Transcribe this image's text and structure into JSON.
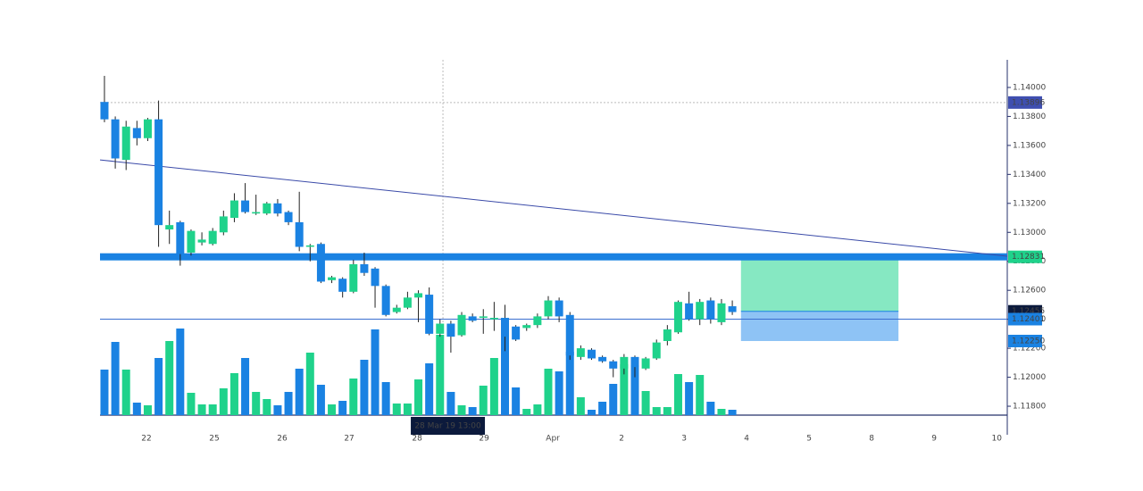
{
  "chart_data": {
    "type": "candlestick",
    "x": [
      0,
      1,
      2,
      3,
      4,
      5,
      6,
      7,
      8,
      9,
      10,
      11,
      12,
      13,
      14,
      15,
      16,
      17,
      18,
      19,
      20,
      21,
      22,
      23,
      24,
      25,
      26,
      27,
      28,
      29,
      30,
      31,
      32,
      33,
      34,
      35,
      36,
      37,
      38,
      39,
      40,
      41,
      42,
      43,
      44,
      45,
      46,
      47,
      48,
      49,
      50,
      51,
      52,
      53,
      54,
      55,
      56,
      57,
      58
    ],
    "open": [
      1.139,
      1.1378,
      1.135,
      1.1372,
      1.1365,
      1.1378,
      1.1302,
      1.1307,
      1.1286,
      1.1293,
      1.1292,
      1.13,
      1.131,
      1.1322,
      1.1313,
      1.1313,
      1.132,
      1.1314,
      1.1307,
      1.129,
      1.1292,
      1.1267,
      1.1268,
      1.1259,
      1.1278,
      1.1275,
      1.1263,
      1.1245,
      1.1248,
      1.1255,
      1.1257,
      1.123,
      1.1237,
      1.1229,
      1.1242,
      1.1241,
      1.124,
      1.1241,
      1.1235,
      1.1234,
      1.1236,
      1.1242,
      1.1253,
      1.1243,
      1.1214,
      1.1219,
      1.1214,
      1.1211,
      1.1206,
      1.1214,
      1.1206,
      1.1213,
      1.1225,
      1.1231,
      1.1251,
      1.124,
      1.1253,
      1.1238,
      1.1249
    ],
    "high": [
      1.1408,
      1.138,
      1.1377,
      1.1377,
      1.1379,
      1.1391,
      1.1315,
      1.1308,
      1.1302,
      1.13,
      1.1303,
      1.1315,
      1.1327,
      1.1334,
      1.1326,
      1.1321,
      1.1323,
      1.1315,
      1.1328,
      1.1292,
      1.1293,
      1.127,
      1.1269,
      1.1281,
      1.1286,
      1.1276,
      1.1264,
      1.125,
      1.1259,
      1.126,
      1.1262,
      1.124,
      1.1239,
      1.1245,
      1.1244,
      1.1247,
      1.1252,
      1.125,
      1.1236,
      1.1237,
      1.1244,
      1.1256,
      1.1255,
      1.1245,
      1.1222,
      1.122,
      1.1215,
      1.1212,
      1.1216,
      1.1215,
      1.1214,
      1.1226,
      1.1236,
      1.1253,
      1.1259,
      1.1254,
      1.1255,
      1.1254,
      1.1253
    ],
    "low": [
      1.1376,
      1.1344,
      1.1343,
      1.136,
      1.1363,
      1.129,
      1.1292,
      1.1277,
      1.1284,
      1.1291,
      1.1291,
      1.1298,
      1.1307,
      1.1313,
      1.1312,
      1.1312,
      1.1311,
      1.1305,
      1.1287,
      1.128,
      1.1265,
      1.1265,
      1.1255,
      1.1258,
      1.127,
      1.1248,
      1.1242,
      1.1244,
      1.1247,
      1.1238,
      1.1229,
      1.1228,
      1.1217,
      1.1228,
      1.1238,
      1.123,
      1.1232,
      1.1218,
      1.1225,
      1.1232,
      1.1234,
      1.124,
      1.1238,
      1.1212,
      1.1212,
      1.1212,
      1.121,
      1.12,
      1.1202,
      1.12,
      1.1205,
      1.1212,
      1.1222,
      1.123,
      1.1239,
      1.1236,
      1.1237,
      1.1236,
      1.1243
    ],
    "close": [
      1.1378,
      1.1351,
      1.1373,
      1.1365,
      1.1378,
      1.1305,
      1.1305,
      1.1285,
      1.1301,
      1.1295,
      1.1301,
      1.1311,
      1.1322,
      1.1314,
      1.1314,
      1.132,
      1.1313,
      1.1307,
      1.129,
      1.1291,
      1.1266,
      1.1269,
      1.1259,
      1.1278,
      1.1272,
      1.1263,
      1.1243,
      1.1248,
      1.1255,
      1.1258,
      1.123,
      1.1237,
      1.1228,
      1.1243,
      1.1239,
      1.1242,
      1.1241,
      1.1228,
      1.1226,
      1.1236,
      1.1242,
      1.1253,
      1.1242,
      1.1215,
      1.122,
      1.1213,
      1.1211,
      1.1206,
      1.1214,
      1.1207,
      1.1213,
      1.1224,
      1.1233,
      1.1252,
      1.124,
      1.1252,
      1.124,
      1.1251,
      1.1245
    ],
    "volume": [
      51,
      82,
      51,
      14,
      11,
      64,
      83,
      97,
      25,
      12,
      12,
      30,
      47,
      64,
      26,
      18,
      11,
      26,
      52,
      70,
      34,
      12,
      16,
      41,
      62,
      96,
      37,
      13,
      13,
      40,
      58,
      90,
      26,
      11,
      9,
      33,
      64,
      97,
      31,
      7,
      12,
      52,
      49,
      71,
      20,
      6,
      15,
      35,
      57,
      56,
      27,
      9,
      9,
      46,
      37,
      45,
      15,
      7,
      6
    ],
    "up_color": "#1fd28b",
    "down_color": "#1a82e2",
    "xlim": [
      -0.41,
      83.4
    ],
    "ylim": [
      1.116,
      1.142
    ],
    "xticks": [
      {
        "value": 3.88,
        "label": "22"
      },
      {
        "value": 10.15,
        "label": "25"
      },
      {
        "value": 16.42,
        "label": "26"
      },
      {
        "value": 22.61,
        "label": "27"
      },
      {
        "value": 28.88,
        "label": "28"
      },
      {
        "value": 35.07,
        "label": "29"
      },
      {
        "value": 41.42,
        "label": "Apr"
      },
      {
        "value": 47.77,
        "label": "2"
      },
      {
        "value": 53.55,
        "label": "3"
      },
      {
        "value": 59.32,
        "label": "4"
      },
      {
        "value": 65.1,
        "label": "5"
      },
      {
        "value": 70.87,
        "label": "8"
      },
      {
        "value": 76.65,
        "label": "9"
      },
      {
        "value": 82.43,
        "label": "10"
      }
    ],
    "yticks": [
      {
        "value": 1.118,
        "label": "1.11800"
      },
      {
        "value": 1.12,
        "label": "1.12000"
      },
      {
        "value": 1.122,
        "label": "1.12200"
      },
      {
        "value": 1.124,
        "label": "1.12400"
      },
      {
        "value": 1.126,
        "label": "1.12600"
      },
      {
        "value": 1.128,
        "label": "1.12800"
      },
      {
        "value": 1.13,
        "label": "1.13000"
      },
      {
        "value": 1.132,
        "label": "1.13200"
      },
      {
        "value": 1.134,
        "label": "1.13400"
      },
      {
        "value": 1.136,
        "label": "1.13600"
      },
      {
        "value": 1.138,
        "label": "1.13800"
      },
      {
        "value": 1.14,
        "label": "1.14000"
      }
    ],
    "price_labels": [
      {
        "value": 1.13896,
        "color": "#3f4fb0"
      },
      {
        "value": 1.12831,
        "color": "#1fd28b"
      },
      {
        "value": 1.12455,
        "color": "#0c1a3c"
      },
      {
        "value": 1.12401,
        "color": "#1a82e2"
      },
      {
        "value": {
          "value": 1.1225,
          "label": "1.12250"
        },
        "color": "#1a82e2"
      }
    ],
    "trendline": {
      "x": [
        -0.41,
        83.4
      ],
      "y": [
        1.135,
        1.12835
      ],
      "color": "#3a4aa8"
    },
    "position": {
      "x": [
        58.8,
        73.35
      ],
      "target_color": "#86e8c2",
      "stop_color": "#8ec3f5"
    },
    "crosshair": {
      "x": 31.27,
      "label": "28 Mar 19 13:00"
    }
  }
}
